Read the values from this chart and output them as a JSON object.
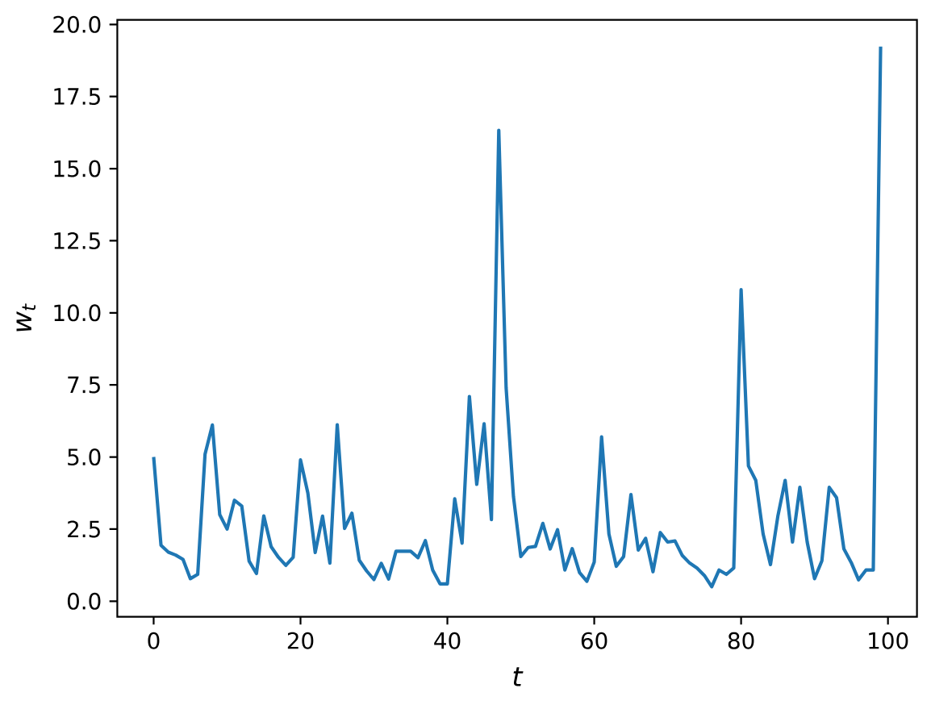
{
  "chart_data": {
    "type": "line",
    "xlabel": "t",
    "ylabel": "w$_{t}$",
    "x": [
      0,
      1,
      2,
      3,
      4,
      5,
      6,
      7,
      8,
      9,
      10,
      11,
      12,
      13,
      14,
      15,
      16,
      17,
      18,
      19,
      20,
      21,
      22,
      23,
      24,
      25,
      26,
      27,
      28,
      29,
      30,
      31,
      32,
      33,
      34,
      35,
      36,
      37,
      38,
      39,
      40,
      41,
      42,
      43,
      44,
      45,
      46,
      47,
      48,
      49,
      50,
      51,
      52,
      53,
      54,
      55,
      56,
      57,
      58,
      59,
      60,
      61,
      62,
      63,
      64,
      65,
      66,
      67,
      68,
      69,
      70,
      71,
      72,
      73,
      74,
      75,
      76,
      77,
      78,
      79,
      80,
      81,
      82,
      83,
      84,
      85,
      86,
      87,
      88,
      89,
      90,
      91,
      92,
      93,
      94,
      95,
      96,
      97,
      98,
      99
    ],
    "values": [
      5.0,
      1.94,
      1.7,
      1.6,
      1.45,
      0.78,
      0.93,
      5.1,
      6.11,
      3.0,
      2.5,
      3.5,
      3.3,
      1.39,
      0.96,
      2.96,
      1.89,
      1.52,
      1.24,
      1.52,
      4.9,
      3.75,
      1.69,
      2.95,
      1.32,
      6.12,
      2.52,
      3.05,
      1.42,
      1.05,
      0.75,
      1.31,
      0.77,
      1.73,
      1.73,
      1.73,
      1.51,
      2.1,
      1.08,
      0.6,
      0.6,
      3.55,
      2.01,
      7.1,
      4.05,
      6.15,
      2.83,
      16.33,
      7.4,
      3.63,
      1.55,
      1.86,
      1.9,
      2.7,
      1.81,
      2.48,
      1.08,
      1.82,
      0.99,
      0.69,
      1.36,
      5.7,
      2.33,
      1.21,
      1.55,
      3.7,
      1.77,
      2.18,
      1.02,
      2.38,
      2.05,
      2.09,
      1.58,
      1.32,
      1.15,
      0.89,
      0.5,
      1.08,
      0.93,
      1.15,
      10.8,
      4.69,
      4.19,
      2.33,
      1.27,
      2.94,
      4.19,
      2.05,
      3.95,
      2.05,
      0.78,
      1.4,
      3.95,
      3.59,
      1.81,
      1.34,
      0.74,
      1.08,
      1.08,
      19.23
    ],
    "color": "#1f77b4",
    "xlim": [
      -4.95,
      103.95
    ],
    "ylim": [
      -0.54,
      20.16
    ],
    "xticks": [
      0,
      20,
      40,
      60,
      80,
      100
    ],
    "yticks": [
      {
        "value": 0,
        "label": "0.0"
      },
      2.5,
      {
        "value": 5,
        "label": "5.0"
      },
      7.5,
      {
        "value": 10,
        "label": "10.0"
      },
      12.5,
      {
        "value": 15,
        "label": "15.0"
      },
      17.5,
      {
        "value": 20,
        "label": "20.0"
      }
    ],
    "marker": "none",
    "line_style": "solid"
  }
}
